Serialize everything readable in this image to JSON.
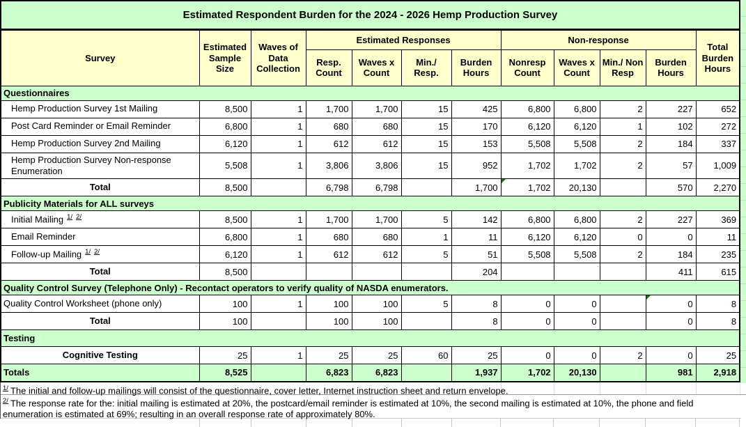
{
  "title": "Estimated Respondent Burden for the 2024 - 2026 Hemp Production Survey",
  "colors": {
    "section_fill": "#CCFFCC",
    "header_fill": "#FFFFCC",
    "error_indicator_triangle": "#157A15",
    "border": "#000000"
  },
  "header": {
    "survey": "Survey",
    "sample_size": "Estimated Sample Size",
    "waves": "Waves of Data Collection",
    "responses_group": "Estimated Responses",
    "nonresponse_group": "Non-response",
    "total_burden": "Total Burden Hours",
    "sub_columns": [
      "Resp. Count",
      "Waves x Count",
      "Min./ Resp.",
      "Burden Hours",
      "Nonresp Count",
      "Waves x Count",
      "Min./ Non Resp",
      "Burden Hours"
    ]
  },
  "rows": [
    {
      "type": "section",
      "label": "Questionnaires"
    },
    {
      "type": "data",
      "label_style": "indent",
      "label": "Hemp Production Survey 1st Mailing",
      "cells": [
        "8,500",
        "1",
        "1,700",
        "1,700",
        "15",
        "425",
        "6,800",
        "6,800",
        "2",
        "227",
        "652"
      ]
    },
    {
      "type": "data",
      "label_style": "indent",
      "label": "Post Card Reminder or Email Reminder",
      "cells": [
        "6,800",
        "1",
        "680",
        "680",
        "15",
        "170",
        "6,120",
        "6,120",
        "1",
        "102",
        "272"
      ]
    },
    {
      "type": "data",
      "label_style": "indent",
      "label": "Hemp Production Survey 2nd Mailing",
      "cells": [
        "6,120",
        "1",
        "612",
        "612",
        "15",
        "153",
        "5,508",
        "5,508",
        "2",
        "184",
        "337"
      ]
    },
    {
      "type": "data",
      "label_style": "indent",
      "label": "Hemp Production Survey Non-response Enumeration",
      "cells": [
        "5,508",
        "1",
        "3,806",
        "3,806",
        "15",
        "952",
        "1,702",
        "1,702",
        "2",
        "57",
        "1,009"
      ]
    },
    {
      "type": "total",
      "label": "Total",
      "error_cells": [
        6
      ],
      "cells": [
        "8,500",
        "",
        "6,798",
        "6,798",
        "",
        "1,700",
        "1,702",
        "20,130",
        "",
        "570",
        "2,270"
      ]
    },
    {
      "type": "section",
      "label": "Publicity Materials for ALL surveys"
    },
    {
      "type": "data",
      "label_style": "indent",
      "label": "Initial Mailing",
      "label_markers": [
        "1/",
        "2/"
      ],
      "cells": [
        "8,500",
        "1",
        "1,700",
        "1,700",
        "5",
        "142",
        "6,800",
        "6,800",
        "2",
        "227",
        "369"
      ]
    },
    {
      "type": "data",
      "label_style": "indent",
      "label": "Email Reminder",
      "cells": [
        "6,800",
        "1",
        "680",
        "680",
        "1",
        "11",
        "6,120",
        "6,120",
        "0",
        "0",
        "11"
      ]
    },
    {
      "type": "data",
      "label_style": "indent",
      "label": "Follow-up Mailing",
      "label_markers": [
        "1/",
        "2/"
      ],
      "cells": [
        "6,120",
        "1",
        "612",
        "612",
        "5",
        "51",
        "5,508",
        "5,508",
        "2",
        "184",
        "235"
      ]
    },
    {
      "type": "total",
      "label": "Total",
      "cells": [
        "8,500",
        "",
        "",
        "",
        "",
        "204",
        "",
        "",
        "",
        "411",
        "615"
      ]
    },
    {
      "type": "section",
      "label": "Quality Control Survey (Telephone Only) - Recontact operators to verify quality of NASDA enumerators."
    },
    {
      "type": "data",
      "label_style": "flush",
      "label": "Quality Control Worksheet (phone only)",
      "error_cells": [
        9
      ],
      "cells": [
        "100",
        "1",
        "100",
        "100",
        "5",
        "8",
        "0",
        "0",
        "",
        "0",
        "8"
      ]
    },
    {
      "type": "total",
      "label": "Total",
      "cells": [
        "100",
        "",
        "100",
        "100",
        "",
        "8",
        "0",
        "0",
        "",
        "0",
        "8"
      ]
    },
    {
      "type": "section",
      "label": "Testing",
      "tall": true
    },
    {
      "type": "data",
      "label_style": "center",
      "label": "Cognitive Testing",
      "cells": [
        "25",
        "1",
        "25",
        "25",
        "60",
        "25",
        "0",
        "0",
        "2",
        "0",
        "25"
      ]
    },
    {
      "type": "totals",
      "label": "Totals",
      "cells": [
        "8,525",
        "",
        "6,823",
        "6,823",
        "",
        "1,937",
        "1,702",
        "20,130",
        "",
        "981",
        "2,918"
      ]
    }
  ],
  "footnotes": [
    {
      "marker": "1/",
      "text": "The initial and follow-up mailings will consist of the questionnaire, cover letter, Internet instruction sheet and return envelope."
    },
    {
      "marker": "2/",
      "text": "The response rate for the: initial mailing is estimated at 20%, the postcard/email reminder is estimated at 10%, the second mailing is estimated at 10%, the phone and field enumeration is estimated at 69%; resulting in an overall response rate of approximately 80%."
    }
  ]
}
